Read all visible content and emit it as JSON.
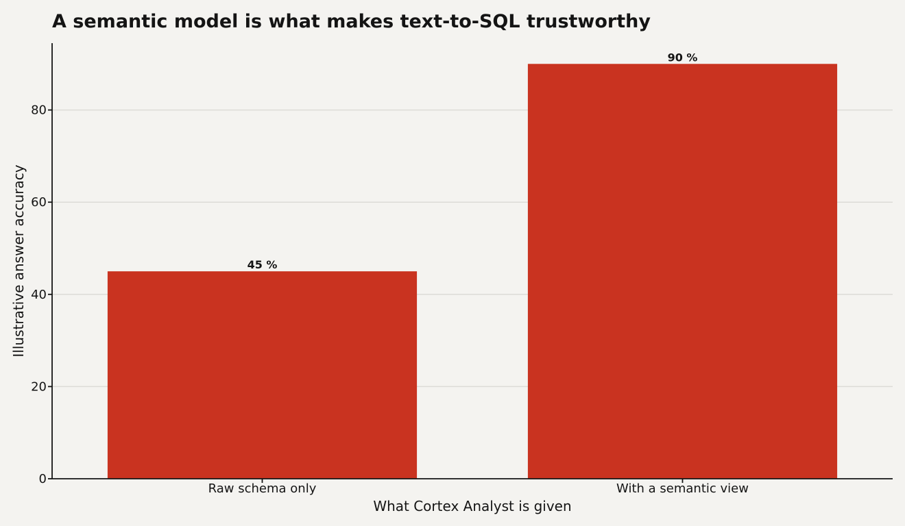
{
  "colors": {
    "background": "#f4f3f0",
    "bar": "#c93320",
    "text": "#141414",
    "grid": "#dcdbd7"
  },
  "chart_data": {
    "type": "bar",
    "title": "A semantic model is what makes text-to-SQL trustworthy",
    "xlabel": "What Cortex Analyst is given",
    "ylabel": "Illustrative answer accuracy",
    "categories": [
      "Raw schema only",
      "With a semantic view"
    ],
    "values": [
      45,
      90
    ],
    "data_labels": [
      "45 %",
      "90 %"
    ],
    "ylim": [
      0,
      94.5
    ],
    "yticks": [
      0,
      20,
      40,
      60,
      80
    ],
    "grid": "horizontal",
    "legend": "none"
  }
}
